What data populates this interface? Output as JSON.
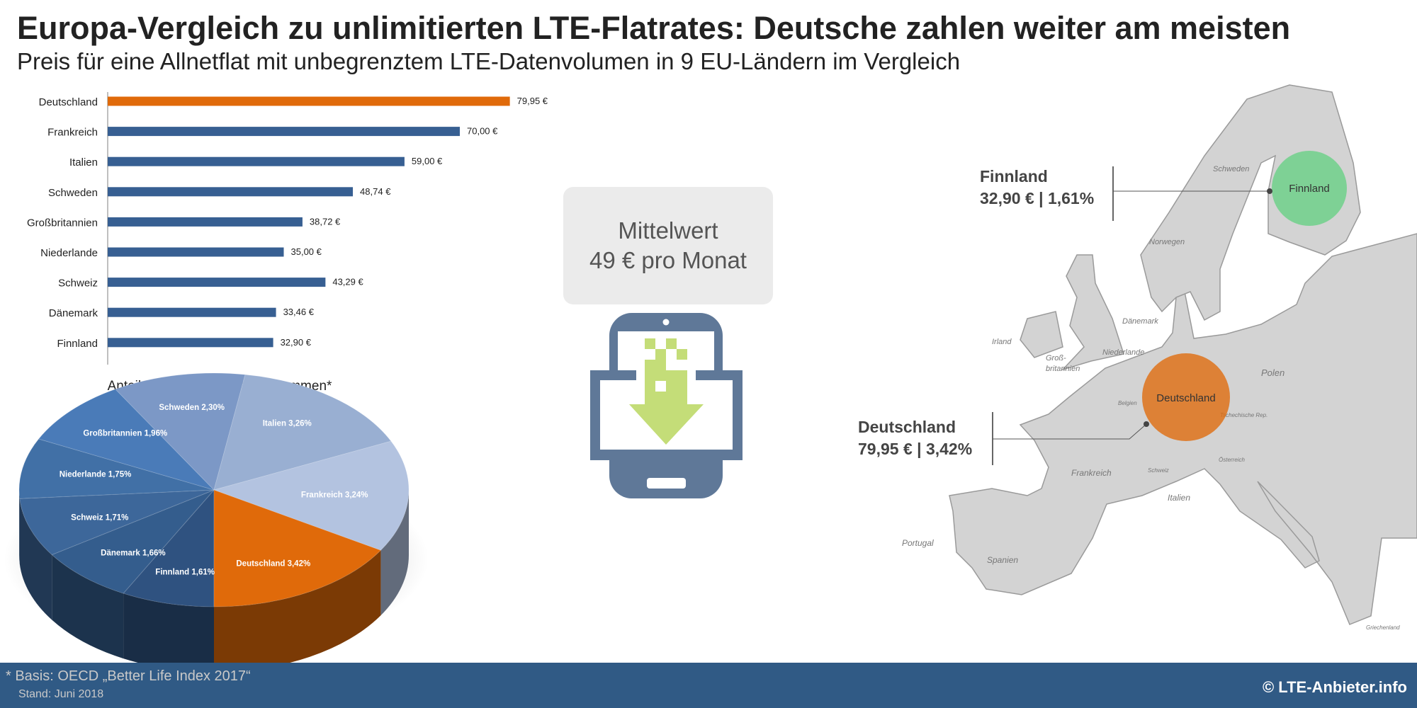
{
  "header": {
    "title": "Europa-Vergleich zu unlimitierten LTE-Flatrates: Deutsche zahlen weiter am meisten",
    "subtitle": "Preis für eine Allnetflat mit unbegrenztem LTE-Datenvolumen in 9 EU-Ländern im Vergleich"
  },
  "colors": {
    "highlight": "#e06a0a",
    "bar": "#375f92",
    "footer": "#305a85",
    "finland": "#6fd08a",
    "map": "#d3d3d3",
    "icon": "#5f7898",
    "arrow": "#c4dd78"
  },
  "chart_data": [
    {
      "type": "bar",
      "orientation": "horizontal",
      "categories": [
        "Deutschland",
        "Frankreich",
        "Italien",
        "Schweden",
        "Großbritannien",
        "Niederlande",
        "Schweiz",
        "Dänemark",
        "Finnland"
      ],
      "values": [
        79.95,
        70.0,
        59.0,
        48.74,
        38.72,
        35.0,
        43.29,
        33.46,
        32.9
      ],
      "labels": [
        "79,95 €",
        "70,00 €",
        "59,00 €",
        "48,74 €",
        "38,72 €",
        "35,00 €",
        "43,29 €",
        "33,46 €",
        "32,90 €"
      ],
      "highlight": "Deutschland",
      "xlim": [
        0,
        80
      ]
    },
    {
      "type": "pie",
      "title": "Anteil am Haushaltsnettoeinkommen*",
      "categories": [
        "Finnland",
        "Dänemark",
        "Schweiz",
        "Niederlande",
        "Großbritannien",
        "Schweden",
        "Italien",
        "Frankreich",
        "Deutschland"
      ],
      "values": [
        1.61,
        1.66,
        1.71,
        1.75,
        1.96,
        2.3,
        3.26,
        3.24,
        3.42
      ],
      "labels": [
        "Finnland 1,61%",
        "Dänemark 1,66%",
        "Schweiz 1,71%",
        "Niederlande 1,75%",
        "Großbritannien 1,96%",
        "Schweden 2,30%",
        "Italien 3,26%",
        "Frankreich 3,24%",
        "Deutschland 3,42%"
      ],
      "colors": [
        "#2f5280",
        "#345d8d",
        "#3d679a",
        "#4170a6",
        "#4a7bb8",
        "#7c98c6",
        "#99afd2",
        "#b3c3e0",
        "#e06a0a"
      ]
    }
  ],
  "average": {
    "line1": "Mittelwert",
    "line2": "49 € pro Monat"
  },
  "map": {
    "finland": {
      "circle_label": "Finnland",
      "name": "Finnland",
      "values": "32,90 € | 1,61%"
    },
    "germany": {
      "circle_label": "Deutschland",
      "name": "Deutschland",
      "values": "79,95 € | 3,42%"
    },
    "labels": [
      "Schweden",
      "Norwegen",
      "Dänemark",
      "Irland",
      "Groß-",
      "britannien",
      "Niederlande",
      "Belgien",
      "Polen",
      "Tschechische Rep.",
      "Österreich",
      "Schweiz",
      "Frankreich",
      "Italien",
      "Portugal",
      "Spanien",
      "Griechenland"
    ]
  },
  "footer": {
    "source": "* Basis: OECD „Better Life Index 2017“",
    "date": "Stand: Juni 2018",
    "copyright": "© LTE-Anbieter.info"
  }
}
